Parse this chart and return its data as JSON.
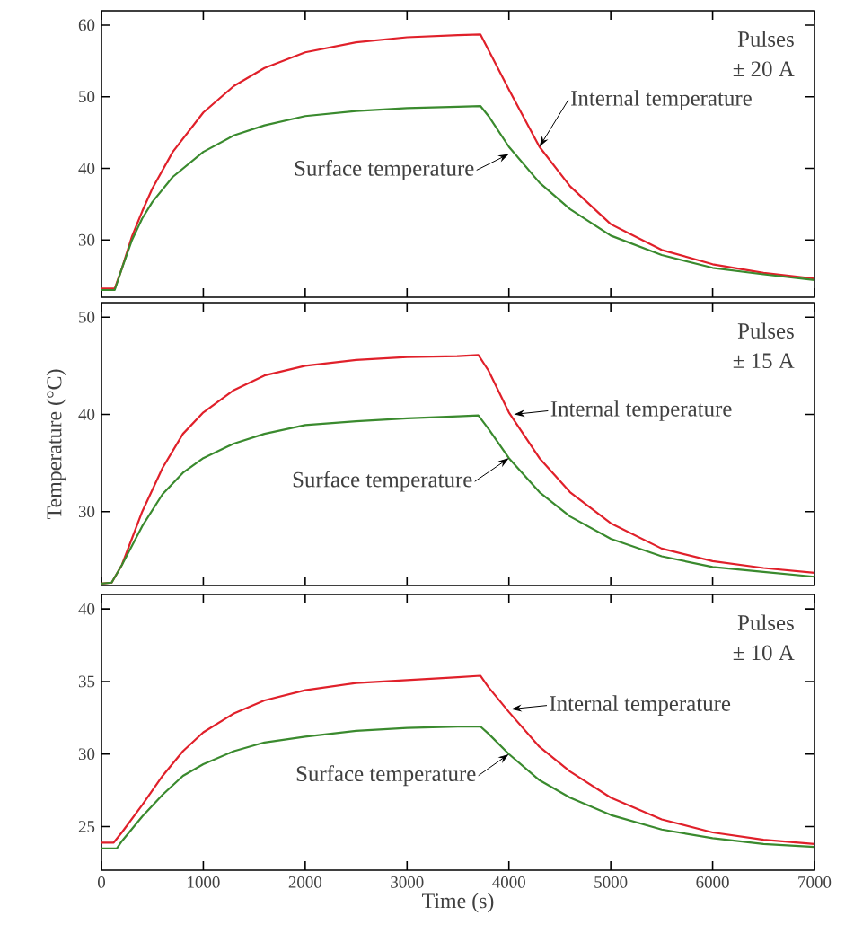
{
  "chart_data": [
    {
      "type": "line",
      "xlim": [
        0,
        7000
      ],
      "ylim": [
        22,
        62
      ],
      "xticks": [
        0,
        1000,
        2000,
        3000,
        4000,
        5000,
        6000,
        7000
      ],
      "yticks": [
        30,
        40,
        50,
        60
      ],
      "tick_labels": "y",
      "series": [
        {
          "color": "#e0202a",
          "x": [
            0,
            130,
            200,
            300,
            400,
            500,
            700,
            1000,
            1300,
            1600,
            2000,
            2500,
            3000,
            3500,
            3720,
            3800,
            4000,
            4300,
            4600,
            5000,
            5500,
            6000,
            6500,
            7000
          ],
          "values": [
            23.2,
            23.2,
            26,
            30.5,
            34,
            37.2,
            42.3,
            47.8,
            51.5,
            54,
            56.2,
            57.6,
            58.3,
            58.6,
            58.7,
            56.5,
            51,
            43,
            37.5,
            32.2,
            28.6,
            26.6,
            25.4,
            24.6
          ]
        },
        {
          "color": "#3a8a2e",
          "x": [
            0,
            130,
            200,
            300,
            400,
            500,
            700,
            1000,
            1300,
            1600,
            2000,
            2500,
            3000,
            3500,
            3720,
            3800,
            4000,
            4300,
            4600,
            5000,
            5500,
            6000,
            6500,
            7000
          ],
          "values": [
            23,
            23,
            26,
            30,
            33,
            35.3,
            38.8,
            42.3,
            44.6,
            46,
            47.3,
            48,
            48.4,
            48.6,
            48.7,
            47.3,
            43,
            38,
            34.3,
            30.6,
            27.9,
            26.1,
            25.2,
            24.4
          ]
        }
      ],
      "annotations": [
        "Pulses",
        "± 20 A",
        {
          "text": "Internal temperature",
          "x": 4300,
          "y": 43
        },
        {
          "text": "Surface temperature",
          "x": 4000,
          "y": 42
        }
      ]
    },
    {
      "type": "line",
      "xlim": [
        0,
        7000
      ],
      "ylim": [
        22.4,
        51.5
      ],
      "xticks": [
        0,
        1000,
        2000,
        3000,
        4000,
        5000,
        6000,
        7000
      ],
      "yticks": [
        30,
        40,
        50
      ],
      "tick_labels": "y",
      "ylabel": "Temperature  (°C)",
      "series": [
        {
          "color": "#e0202a",
          "x": [
            0,
            100,
            200,
            400,
            600,
            800,
            1000,
            1300,
            1600,
            2000,
            2500,
            3000,
            3500,
            3700,
            3800,
            4000,
            4300,
            4600,
            5000,
            5500,
            6000,
            6500,
            7000
          ],
          "values": [
            22.6,
            22.7,
            24.5,
            30,
            34.5,
            38,
            40.2,
            42.5,
            44,
            45,
            45.6,
            45.9,
            46,
            46.1,
            44.5,
            40.2,
            35.5,
            32,
            28.8,
            26.2,
            24.9,
            24.2,
            23.7
          ]
        },
        {
          "color": "#3a8a2e",
          "x": [
            0,
            100,
            200,
            400,
            600,
            800,
            1000,
            1300,
            1600,
            2000,
            2500,
            3000,
            3500,
            3700,
            3800,
            4000,
            4300,
            4600,
            5000,
            5500,
            6000,
            6500,
            7000
          ],
          "values": [
            22.6,
            22.7,
            24.5,
            28.5,
            31.8,
            34,
            35.5,
            37,
            38,
            38.9,
            39.3,
            39.6,
            39.8,
            39.9,
            38.5,
            35.5,
            32,
            29.5,
            27.2,
            25.4,
            24.3,
            23.8,
            23.3
          ]
        }
      ],
      "annotations": [
        "Pulses",
        "± 15 A",
        {
          "text": "Internal temperature",
          "x": 4050,
          "y": 40
        },
        {
          "text": "Surface temperature",
          "x": 4000,
          "y": 35.5
        }
      ]
    },
    {
      "type": "line",
      "xlim": [
        0,
        7000
      ],
      "ylim": [
        22,
        41
      ],
      "xticks": [
        0,
        1000,
        2000,
        3000,
        4000,
        5000,
        6000,
        7000
      ],
      "yticks": [
        25,
        30,
        35,
        40
      ],
      "xlabel": "Time (s)",
      "series": [
        {
          "color": "#e0202a",
          "x": [
            0,
            120,
            200,
            400,
            600,
            800,
            1000,
            1300,
            1600,
            2000,
            2500,
            3000,
            3500,
            3720,
            3800,
            4000,
            4300,
            4600,
            5000,
            5500,
            6000,
            6500,
            7000
          ],
          "values": [
            23.9,
            23.9,
            24.6,
            26.5,
            28.5,
            30.2,
            31.5,
            32.8,
            33.7,
            34.4,
            34.9,
            35.1,
            35.3,
            35.4,
            34.6,
            32.9,
            30.5,
            28.8,
            27,
            25.5,
            24.6,
            24.1,
            23.8
          ]
        },
        {
          "color": "#3a8a2e",
          "x": [
            0,
            150,
            200,
            400,
            600,
            800,
            1000,
            1300,
            1600,
            2000,
            2500,
            3000,
            3500,
            3720,
            3800,
            4000,
            4300,
            4600,
            5000,
            5500,
            6000,
            6500,
            7000
          ],
          "values": [
            23.5,
            23.5,
            24,
            25.7,
            27.2,
            28.5,
            29.3,
            30.2,
            30.8,
            31.2,
            31.6,
            31.8,
            31.9,
            31.9,
            31.4,
            30,
            28.2,
            27,
            25.8,
            24.8,
            24.2,
            23.8,
            23.6
          ]
        }
      ],
      "annotations": [
        "Pulses",
        "± 10 A",
        {
          "text": "Internal temperature",
          "x": 4020,
          "y": 33.1
        },
        {
          "text": "Surface temperature",
          "x": 4000,
          "y": 30
        }
      ]
    }
  ]
}
